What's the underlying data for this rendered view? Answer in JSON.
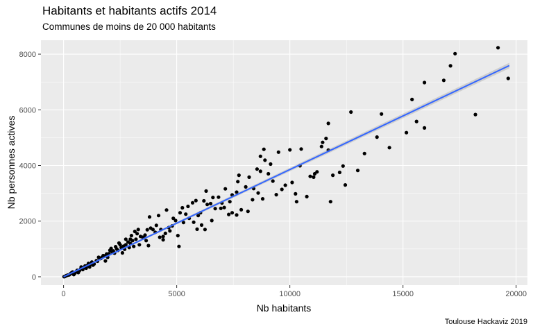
{
  "chart_data": {
    "type": "scatter",
    "title": "Habitants et habitants actifs 2014",
    "subtitle": "Communes de moins de 20 000 habitants",
    "caption": "Toulouse Hackaviz 2019",
    "xlabel": "Nb habitants",
    "ylabel": "Nb personnes actives",
    "xlim": [
      -1000,
      20500
    ],
    "ylim": [
      -300,
      8500
    ],
    "x_ticks": [
      0,
      5000,
      10000,
      15000,
      20000
    ],
    "x_tick_labels": [
      "0",
      "5000",
      "10000",
      "15000",
      "20000"
    ],
    "y_ticks": [
      0,
      2000,
      4000,
      6000,
      8000
    ],
    "y_tick_labels": [
      "0",
      "2000",
      "4000",
      "6000",
      "8000"
    ],
    "grid": true,
    "panel_background": "#ebebeb",
    "point_color": "#000000",
    "trend_line": {
      "method": "linear",
      "color": "#3366ff",
      "x": [
        0,
        19700
      ],
      "y": [
        0,
        7590
      ]
    },
    "points": [
      [
        19200,
        8230
      ],
      [
        17300,
        8020
      ],
      [
        17100,
        7580
      ],
      [
        16800,
        7060
      ],
      [
        19650,
        7130
      ],
      [
        15950,
        6980
      ],
      [
        15400,
        6370
      ],
      [
        12700,
        5920
      ],
      [
        14050,
        5850
      ],
      [
        18200,
        5830
      ],
      [
        15600,
        5580
      ],
      [
        15950,
        5350
      ],
      [
        11700,
        5510
      ],
      [
        15150,
        5180
      ],
      [
        13850,
        5020
      ],
      [
        14400,
        4640
      ],
      [
        13300,
        4430
      ],
      [
        11600,
        4970
      ],
      [
        11450,
        4830
      ],
      [
        11400,
        4680
      ],
      [
        11700,
        4550
      ],
      [
        10500,
        4590
      ],
      [
        10000,
        4560
      ],
      [
        9500,
        4480
      ],
      [
        8850,
        4580
      ],
      [
        8700,
        4330
      ],
      [
        8900,
        4190
      ],
      [
        9150,
        4050
      ],
      [
        10450,
        3990
      ],
      [
        12350,
        3980
      ],
      [
        13000,
        3820
      ],
      [
        12200,
        3750
      ],
      [
        11900,
        3650
      ],
      [
        11200,
        3770
      ],
      [
        11100,
        3700
      ],
      [
        10900,
        3610
      ],
      [
        10100,
        3390
      ],
      [
        9800,
        3290
      ],
      [
        9650,
        3140
      ],
      [
        10250,
        2980
      ],
      [
        10750,
        2880
      ],
      [
        10300,
        2700
      ],
      [
        11800,
        2700
      ],
      [
        12450,
        3300
      ],
      [
        11050,
        3580
      ],
      [
        9250,
        3440
      ],
      [
        8400,
        3170
      ],
      [
        8050,
        3230
      ],
      [
        8600,
        3010
      ],
      [
        8800,
        2800
      ],
      [
        8350,
        2770
      ],
      [
        9400,
        2950
      ],
      [
        7650,
        3040
      ],
      [
        7450,
        2940
      ],
      [
        7750,
        3650
      ],
      [
        8200,
        3580
      ],
      [
        8700,
        3790
      ],
      [
        8550,
        3870
      ],
      [
        7700,
        3420
      ],
      [
        9050,
        3700
      ],
      [
        7150,
        3160
      ],
      [
        6850,
        2860
      ],
      [
        6600,
        2850
      ],
      [
        6300,
        3080
      ],
      [
        7100,
        2490
      ],
      [
        6950,
        2460
      ],
      [
        6500,
        2630
      ],
      [
        6200,
        2730
      ],
      [
        6350,
        2600
      ],
      [
        7450,
        2300
      ],
      [
        7300,
        2240
      ],
      [
        7650,
        2220
      ],
      [
        8150,
        2350
      ],
      [
        7850,
        2410
      ],
      [
        5850,
        2740
      ],
      [
        5700,
        2660
      ],
      [
        5500,
        2530
      ],
      [
        5250,
        2480
      ],
      [
        5150,
        2300
      ],
      [
        5950,
        2200
      ],
      [
        6100,
        1860
      ],
      [
        5750,
        1960
      ],
      [
        5900,
        1710
      ],
      [
        6250,
        1700
      ],
      [
        6550,
        2020
      ],
      [
        4950,
        2020
      ],
      [
        4800,
        1830
      ],
      [
        4650,
        1770
      ],
      [
        5050,
        1480
      ],
      [
        4400,
        1450
      ],
      [
        4500,
        1560
      ],
      [
        5100,
        1090
      ],
      [
        4400,
        1330
      ],
      [
        4250,
        1420
      ],
      [
        3750,
        1120
      ],
      [
        3650,
        1300
      ],
      [
        3500,
        1420
      ],
      [
        3700,
        1690
      ],
      [
        3950,
        1700
      ],
      [
        4200,
        2200
      ],
      [
        4550,
        2400
      ],
      [
        3800,
        2150
      ],
      [
        3300,
        1700
      ],
      [
        3150,
        1630
      ],
      [
        3000,
        1480
      ],
      [
        2950,
        1200
      ],
      [
        2750,
        1350
      ],
      [
        3350,
        1150
      ],
      [
        3100,
        1090
      ],
      [
        2700,
        990
      ],
      [
        2450,
        1210
      ],
      [
        2300,
        1080
      ],
      [
        2600,
        860
      ],
      [
        2200,
        930
      ],
      [
        2000,
        830
      ],
      [
        2100,
        1020
      ],
      [
        1750,
        760
      ],
      [
        1900,
        820
      ],
      [
        1850,
        570
      ],
      [
        1650,
        660
      ],
      [
        1550,
        700
      ],
      [
        1350,
        460
      ],
      [
        1250,
        530
      ],
      [
        1450,
        580
      ],
      [
        1100,
        480
      ],
      [
        950,
        390
      ],
      [
        1000,
        310
      ],
      [
        850,
        260
      ],
      [
        700,
        220
      ],
      [
        600,
        230
      ],
      [
        780,
        350
      ],
      [
        500,
        130
      ],
      [
        400,
        170
      ],
      [
        300,
        110
      ],
      [
        250,
        70
      ],
      [
        180,
        60
      ],
      [
        120,
        40
      ],
      [
        70,
        20
      ],
      [
        40,
        10
      ],
      [
        20,
        5
      ],
      [
        3400,
        1450
      ],
      [
        3250,
        1550
      ],
      [
        2850,
        1250
      ],
      [
        2650,
        1100
      ],
      [
        2400,
        950
      ],
      [
        2250,
        850
      ],
      [
        2050,
        950
      ],
      [
        1950,
        700
      ],
      [
        1700,
        700
      ],
      [
        1500,
        560
      ],
      [
        1300,
        420
      ],
      [
        1150,
        350
      ],
      [
        650,
        150
      ],
      [
        550,
        180
      ],
      [
        450,
        80
      ],
      [
        350,
        140
      ],
      [
        2500,
        1150
      ],
      [
        2900,
        1050
      ],
      [
        3050,
        1300
      ],
      [
        3600,
        1500
      ],
      [
        4050,
        1600
      ],
      [
        4300,
        1700
      ],
      [
        4700,
        1650
      ],
      [
        5300,
        1950
      ],
      [
        5550,
        2100
      ],
      [
        6050,
        2300
      ],
      [
        6700,
        2450
      ],
      [
        7000,
        2650
      ],
      [
        7350,
        2700
      ],
      [
        5400,
        2250
      ],
      [
        4850,
        2100
      ],
      [
        4100,
        1850
      ],
      [
        3850,
        1750
      ],
      [
        3550,
        1400
      ],
      [
        3200,
        1350
      ],
      [
        1600,
        650
      ],
      [
        1800,
        750
      ],
      [
        2150,
        880
      ],
      [
        2350,
        1000
      ],
      [
        2550,
        1050
      ],
      [
        2750,
        1150
      ],
      [
        2950,
        1350
      ],
      [
        1050,
        400
      ],
      [
        900,
        330
      ],
      [
        750,
        280
      ],
      [
        1200,
        450
      ]
    ]
  }
}
